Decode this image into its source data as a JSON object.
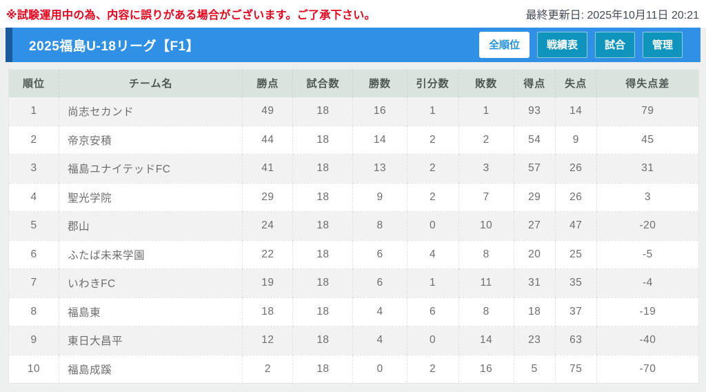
{
  "top_bar": {
    "warning": "※試験運用中の為、内容に誤りがある場合がございます。ご了承下さい。",
    "last_updated": "最終更新日: 2025年10月11日 20:21"
  },
  "header": {
    "title": "2025福島U-18リーグ【F1】",
    "buttons": [
      {
        "label": "全順位",
        "active": true
      },
      {
        "label": "戦績表",
        "active": false
      },
      {
        "label": "試合",
        "active": false
      },
      {
        "label": "管理",
        "active": false
      }
    ]
  },
  "table": {
    "columns": [
      "順位",
      "チーム名",
      "勝点",
      "試合数",
      "勝数",
      "引分数",
      "敗数",
      "得点",
      "失点",
      "得失点差"
    ],
    "rows": [
      [
        "1",
        "尚志セカンド",
        "49",
        "18",
        "16",
        "1",
        "1",
        "93",
        "14",
        "79"
      ],
      [
        "2",
        "帝京安積",
        "44",
        "18",
        "14",
        "2",
        "2",
        "54",
        "9",
        "45"
      ],
      [
        "3",
        "福島ユナイテッドFC",
        "41",
        "18",
        "13",
        "2",
        "3",
        "57",
        "26",
        "31"
      ],
      [
        "4",
        "聖光学院",
        "29",
        "18",
        "9",
        "2",
        "7",
        "29",
        "26",
        "3"
      ],
      [
        "5",
        "郡山",
        "24",
        "18",
        "8",
        "0",
        "10",
        "27",
        "47",
        "-20"
      ],
      [
        "6",
        "ふたば未来学園",
        "22",
        "18",
        "6",
        "4",
        "8",
        "20",
        "25",
        "-5"
      ],
      [
        "7",
        "いわきFC",
        "19",
        "18",
        "6",
        "1",
        "11",
        "31",
        "35",
        "-4"
      ],
      [
        "8",
        "福島東",
        "18",
        "18",
        "4",
        "6",
        "8",
        "18",
        "37",
        "-19"
      ],
      [
        "9",
        "東日大昌平",
        "12",
        "18",
        "4",
        "0",
        "14",
        "23",
        "63",
        "-40"
      ],
      [
        "10",
        "福島成蹊",
        "2",
        "18",
        "0",
        "2",
        "16",
        "5",
        "75",
        "-70"
      ]
    ]
  },
  "colors": {
    "warning_red": "#e8001c",
    "header_blue": "#2f90e5",
    "accent_dark_blue": "#1a5c99",
    "button_teal": "#0f95bd",
    "active_tab_blue": "#2293dc",
    "table_header_bg": "#d9e4df",
    "row_alt_bg": "#f2f2f2"
  }
}
